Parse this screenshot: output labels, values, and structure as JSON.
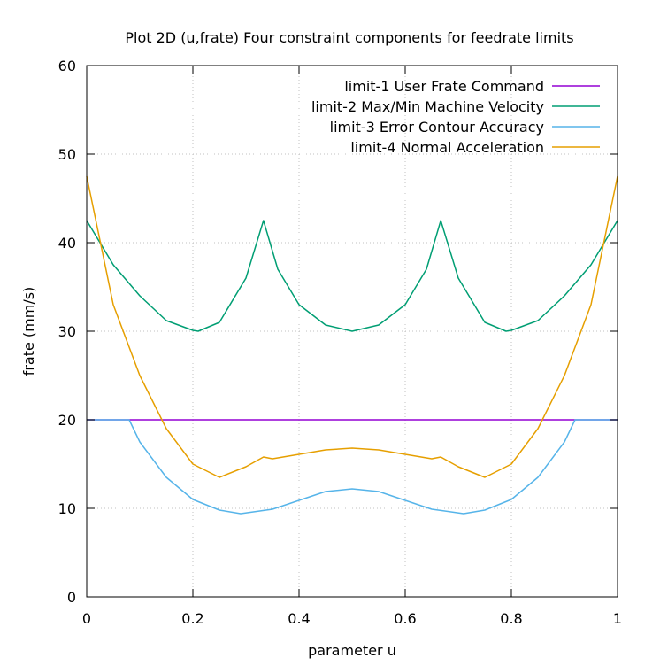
{
  "chart_data": {
    "type": "line",
    "title": "Plot 2D (u,frate) Four constraint components for feedrate limits",
    "xlabel": "parameter u",
    "ylabel": "frate (mm/s)",
    "xlim": [
      0,
      1
    ],
    "ylim": [
      0,
      60
    ],
    "xticks": [
      0,
      0.2,
      0.4,
      0.6,
      0.8,
      1
    ],
    "xtick_labels": [
      "0",
      "0.2",
      "0.4",
      "0.6",
      "0.8",
      "1"
    ],
    "yticks": [
      0,
      10,
      20,
      30,
      40,
      50,
      60
    ],
    "ytick_labels": [
      "0",
      "10",
      "20",
      "30",
      "40",
      "50",
      "60"
    ],
    "grid": true,
    "legend_position": "top-right",
    "series": [
      {
        "name": "limit-1 User Frate Command",
        "color": "#9400d3",
        "x": [
          0,
          1
        ],
        "y": [
          20,
          20
        ]
      },
      {
        "name": "limit-2 Max/Min Machine Velocity",
        "color": "#009e73",
        "x": [
          0,
          0.05,
          0.1,
          0.15,
          0.2,
          0.21,
          0.25,
          0.3,
          0.333,
          0.36,
          0.4,
          0.45,
          0.5,
          0.55,
          0.6,
          0.64,
          0.667,
          0.7,
          0.75,
          0.79,
          0.8,
          0.85,
          0.9,
          0.95,
          1
        ],
        "y": [
          42.5,
          37.5,
          34,
          31.2,
          30.1,
          30,
          31,
          36,
          42.5,
          37,
          33,
          30.7,
          30,
          30.7,
          33,
          37,
          42.5,
          36,
          31,
          30,
          30.1,
          31.2,
          34,
          37.5,
          42.5
        ]
      },
      {
        "name": "limit-3 Error Contour Accuracy",
        "color": "#56b4e9",
        "x": [
          0,
          0.08,
          0.1,
          0.15,
          0.2,
          0.25,
          0.29,
          0.35,
          0.4,
          0.45,
          0.5,
          0.55,
          0.6,
          0.65,
          0.71,
          0.75,
          0.8,
          0.85,
          0.9,
          0.92,
          1
        ],
        "y": [
          20,
          20,
          17.5,
          13.5,
          11,
          9.8,
          9.4,
          9.9,
          10.9,
          11.9,
          12.2,
          11.9,
          10.9,
          9.9,
          9.4,
          9.8,
          11,
          13.5,
          17.5,
          20,
          20
        ]
      },
      {
        "name": "limit-4 Normal Acceleration",
        "color": "#e69f00",
        "x": [
          0,
          0.05,
          0.1,
          0.15,
          0.2,
          0.25,
          0.3,
          0.333,
          0.35,
          0.4,
          0.45,
          0.5,
          0.55,
          0.6,
          0.65,
          0.667,
          0.7,
          0.75,
          0.8,
          0.85,
          0.9,
          0.95,
          1
        ],
        "y": [
          47.5,
          33,
          25,
          19,
          15,
          13.5,
          14.7,
          15.8,
          15.6,
          16.1,
          16.6,
          16.8,
          16.6,
          16.1,
          15.6,
          15.8,
          14.7,
          13.5,
          15,
          19,
          25,
          33,
          47.5
        ]
      }
    ]
  }
}
